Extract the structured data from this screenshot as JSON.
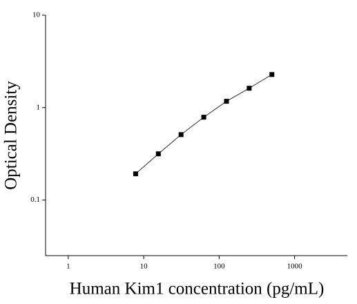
{
  "chart_data": {
    "type": "scatter",
    "x_label": "Human Kim1 concentration (pg/mL)",
    "y_label": "Optical Density",
    "x": [
      7.8125,
      15.625,
      31.25,
      62.5,
      125,
      250,
      500
    ],
    "series": [
      {
        "color": "#000000",
        "values": [
          0.192,
          0.316,
          0.51,
          0.787,
          1.17,
          1.62,
          2.28
        ]
      }
    ],
    "xlog": true,
    "ylog": true,
    "xlim": [
      0.5,
      5000
    ],
    "ylim": [
      0.025,
      10
    ],
    "xticks": [
      1,
      10,
      100,
      1000
    ],
    "yticks": [
      0.1,
      1,
      10
    ],
    "fit_line": true
  }
}
